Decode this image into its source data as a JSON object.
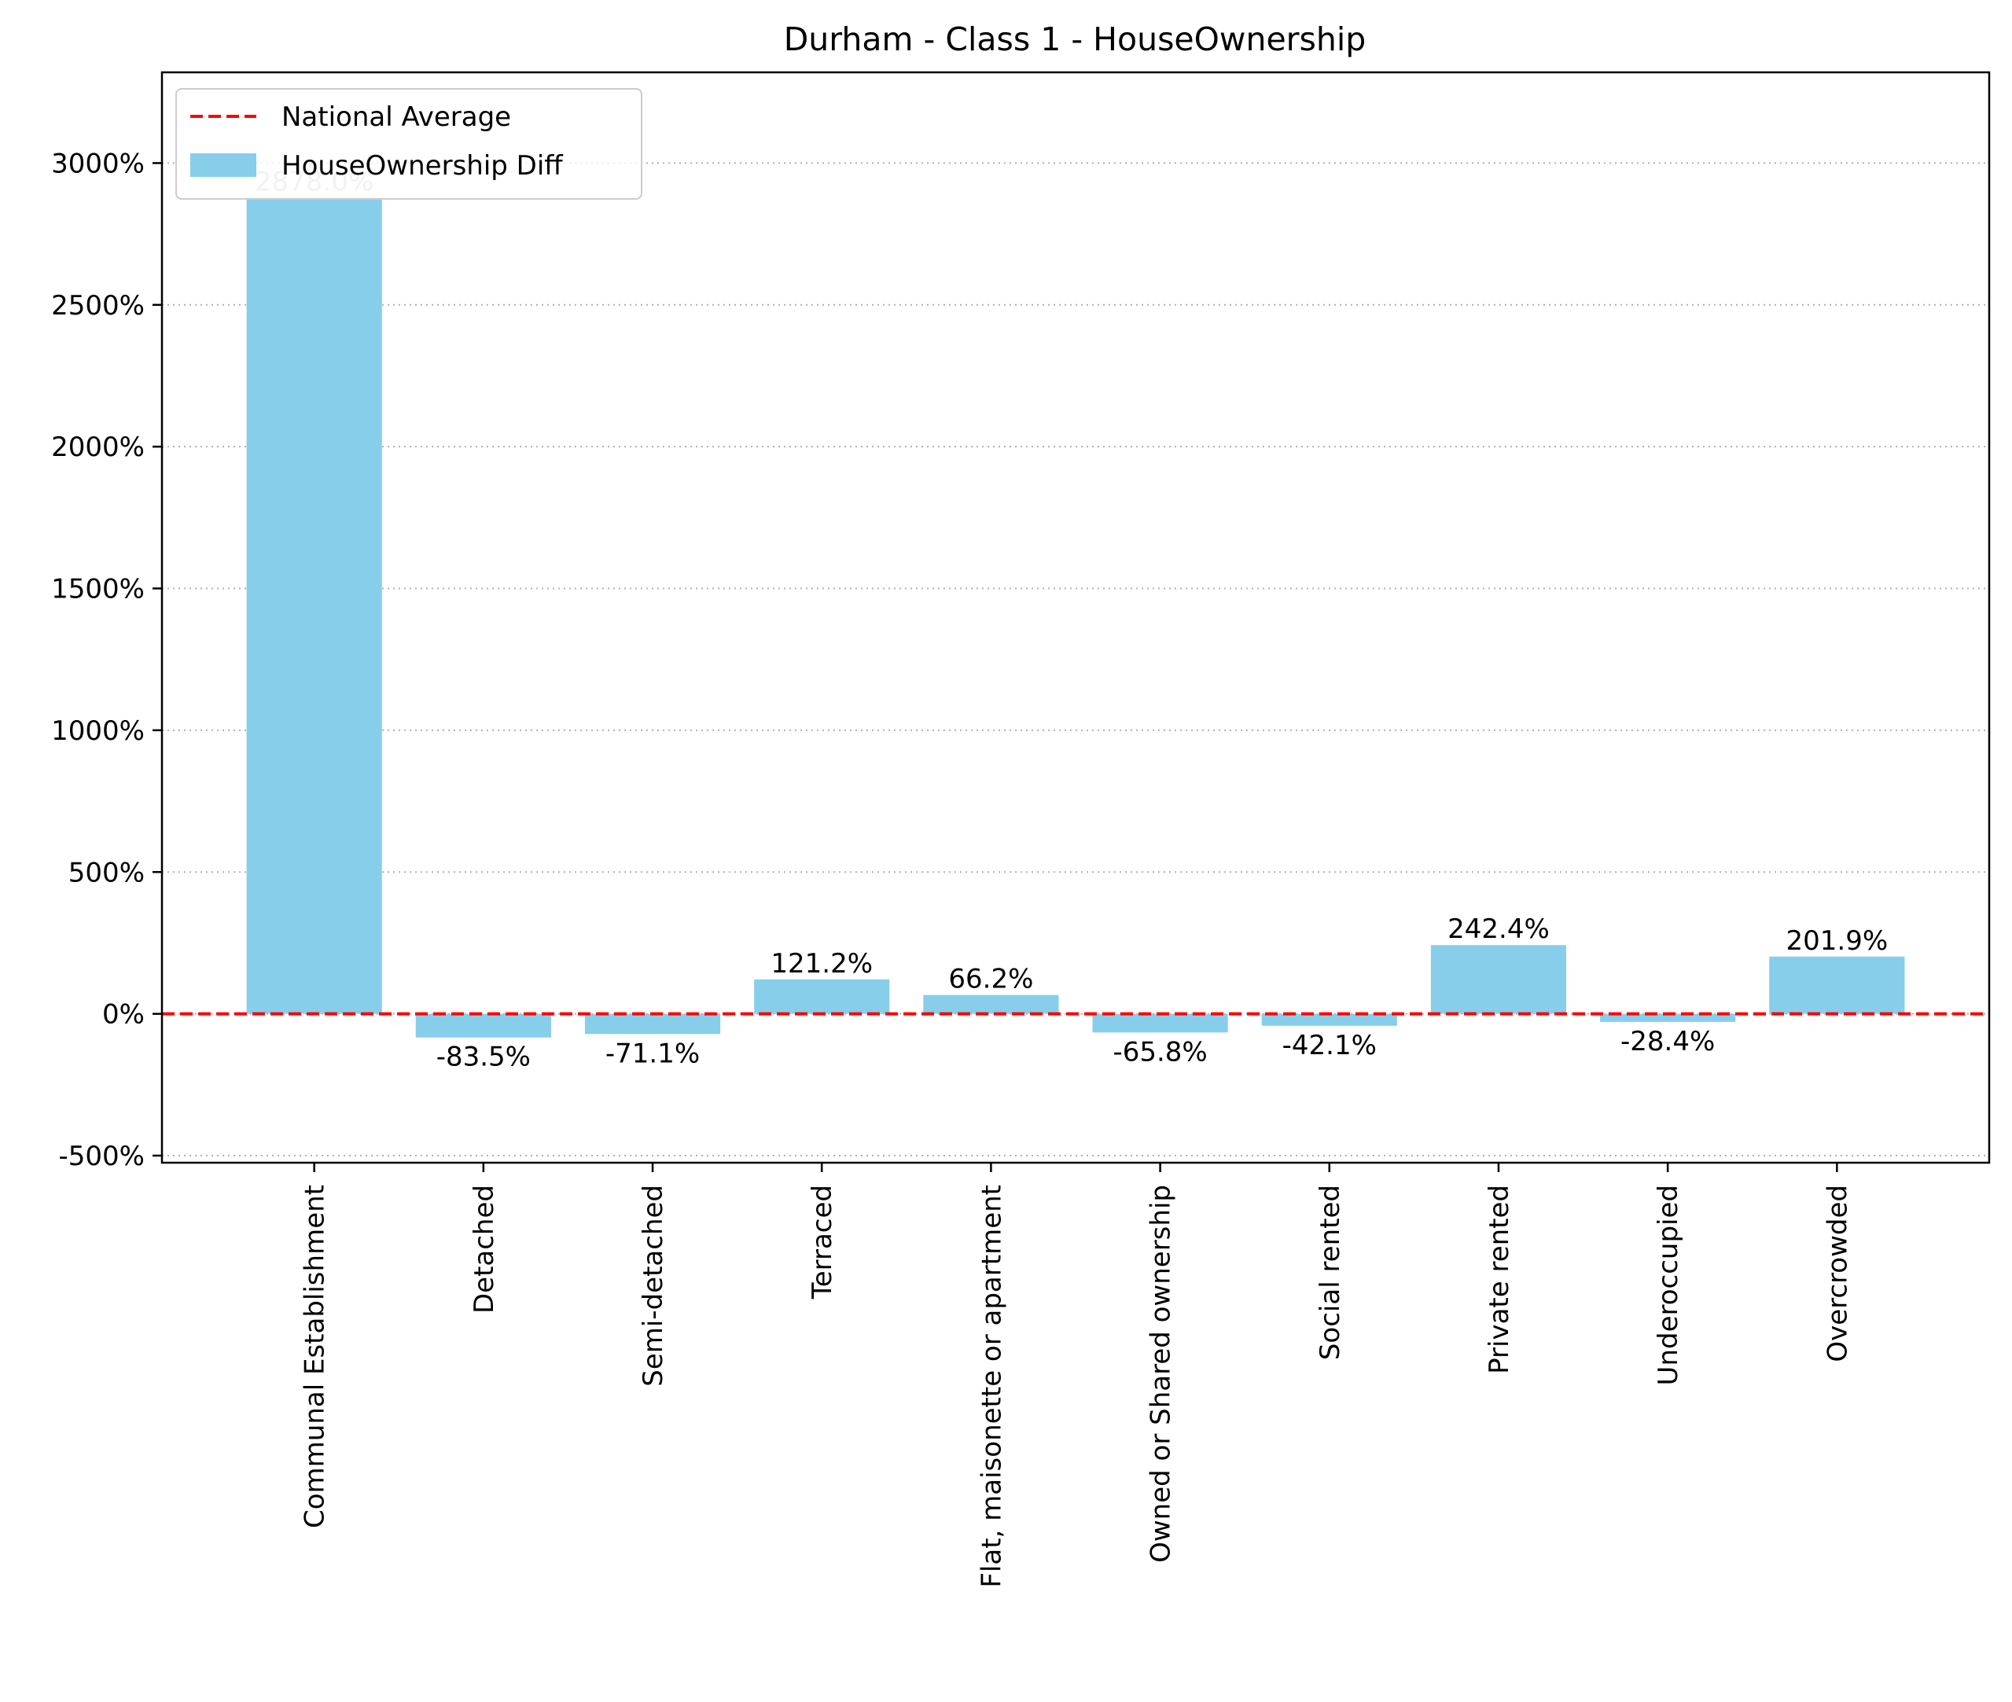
{
  "chart_data": {
    "type": "bar",
    "title": "Durham - Class 1 - HouseOwnership",
    "xlabel": "",
    "ylabel": "",
    "categories": [
      "Communal Establishment",
      "Detached",
      "Semi-detached",
      "Terraced",
      "Flat, maisonette or apartment",
      "Owned or Shared ownership",
      "Social rented",
      "Private rented",
      "Underoccupied",
      "Overcrowded"
    ],
    "series": [
      {
        "name": "HouseOwnership Diff",
        "color": "#87ceeb",
        "values": [
          2878.0,
          -83.5,
          -71.1,
          121.2,
          66.2,
          -65.8,
          -42.1,
          242.4,
          -28.4,
          201.9
        ],
        "labels": [
          "2878.0%",
          "-83.5%",
          "-71.1%",
          "121.2%",
          "66.2%",
          "-65.8%",
          "-42.1%",
          "242.4%",
          "-28.4%",
          "201.9%"
        ]
      }
    ],
    "reference_line": {
      "name": "National Average",
      "value": 0,
      "color": "#ff0000",
      "style": "dashed"
    },
    "ylim": [
      -525,
      3320
    ],
    "yticks": [
      -500,
      0,
      500,
      1000,
      1500,
      2000,
      2500,
      3000
    ],
    "ytick_labels": [
      "-500%",
      "0%",
      "500%",
      "1000%",
      "1500%",
      "2000%",
      "2500%",
      "3000%"
    ],
    "grid": {
      "axis": "y",
      "style": "dotted",
      "color": "#b0b0b0"
    },
    "legend": {
      "position": "top-left",
      "entries": [
        "National Average",
        "HouseOwnership Diff"
      ]
    }
  }
}
